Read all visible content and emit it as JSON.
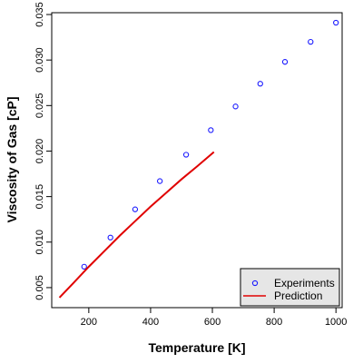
{
  "chart_data": {
    "type": "scatter",
    "xlabel": "Temperature [K]",
    "ylabel": "Viscosity of Gas [cP]",
    "xlim": [
      80,
      1020
    ],
    "ylim": [
      0.0028,
      0.0352
    ],
    "x_ticks": [
      200,
      400,
      600,
      800,
      1000
    ],
    "y_ticks": [
      0.005,
      0.01,
      0.015,
      0.02,
      0.025,
      0.03,
      0.035
    ],
    "x_tick_labels": [
      "200",
      "400",
      "600",
      "800",
      "1000"
    ],
    "y_tick_labels": [
      "0.005",
      "0.010",
      "0.015",
      "0.020",
      "0.025",
      "0.030",
      "0.035"
    ],
    "legend_position": "bottom-right",
    "series": [
      {
        "name": "Experiments",
        "kind": "points",
        "color": "#1a1aff",
        "x": [
          185,
          270,
          350,
          430,
          515,
          595,
          675,
          755,
          835,
          918,
          1000
        ],
        "y": [
          0.0073,
          0.0105,
          0.0136,
          0.0167,
          0.0196,
          0.0223,
          0.0249,
          0.0274,
          0.0298,
          0.032,
          0.0341
        ]
      },
      {
        "name": "Prediction",
        "kind": "line",
        "color": "#e00000",
        "x": [
          105,
          150,
          200,
          250,
          300,
          350,
          400,
          450,
          500,
          550,
          605
        ],
        "y": [
          0.0039,
          0.0055,
          0.0073,
          0.009,
          0.0107,
          0.0123,
          0.0139,
          0.0154,
          0.0169,
          0.0183,
          0.0199
        ]
      }
    ]
  }
}
